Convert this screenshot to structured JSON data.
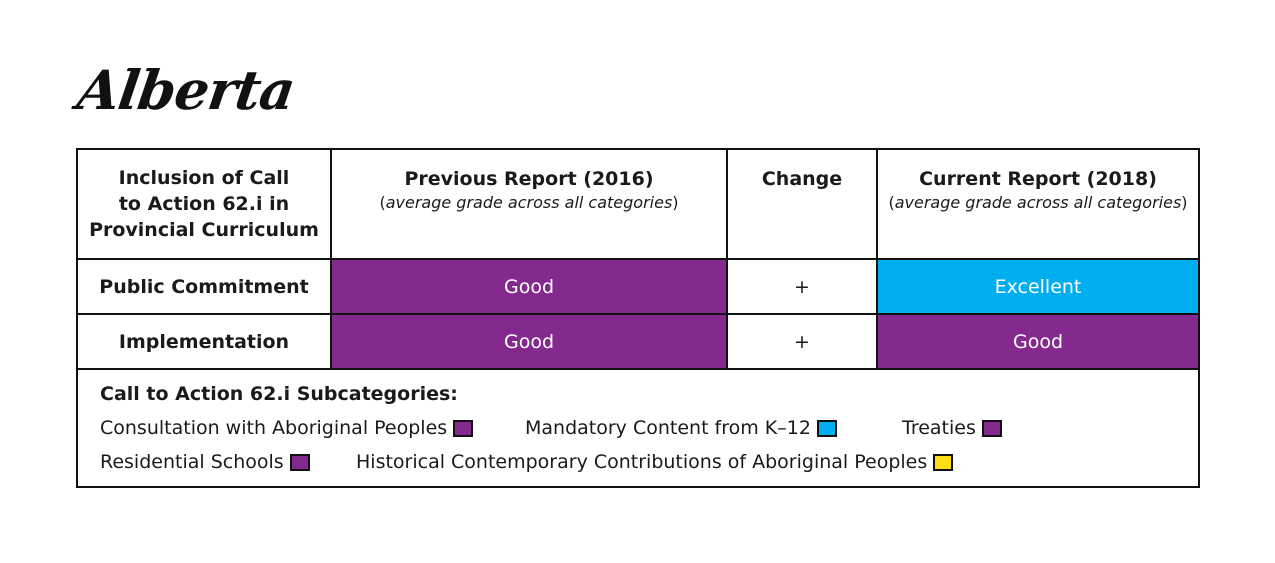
{
  "title": "Alberta",
  "table": {
    "headers": {
      "col1": "Inclusion of Call to Action 62.i in Provincial Curriculum",
      "col1_lines": [
        "Inclusion of Call",
        "to Action 62.i in",
        "Provincial Curriculum"
      ],
      "previous": "Previous Report (2016)",
      "previous_sub": "average grade across all categories",
      "change": "Change",
      "current": "Current Report (2018)",
      "current_sub": "average grade across all categories"
    },
    "rows": [
      {
        "label": "Public Commitment",
        "previous": "Good",
        "previous_color": "#84298e",
        "change": "+",
        "current": "Excellent",
        "current_color": "#00aeef"
      },
      {
        "label": "Implementation",
        "previous": "Good",
        "previous_color": "#84298e",
        "change": "+",
        "current": "Good",
        "current_color": "#84298e"
      }
    ]
  },
  "legend": {
    "title": "Call to Action 62.i Subcategories:",
    "items": [
      {
        "label": "Consultation with Aboriginal Peoples",
        "color": "#84298e"
      },
      {
        "label": "Mandatory Content from K–12",
        "color": "#00aeef"
      },
      {
        "label": "Treaties",
        "color": "#84298e"
      },
      {
        "label": "Residential Schools",
        "color": "#84298e"
      },
      {
        "label": "Historical Contemporary Contributions of Aboriginal Peoples",
        "color": "#ffde17"
      }
    ]
  }
}
